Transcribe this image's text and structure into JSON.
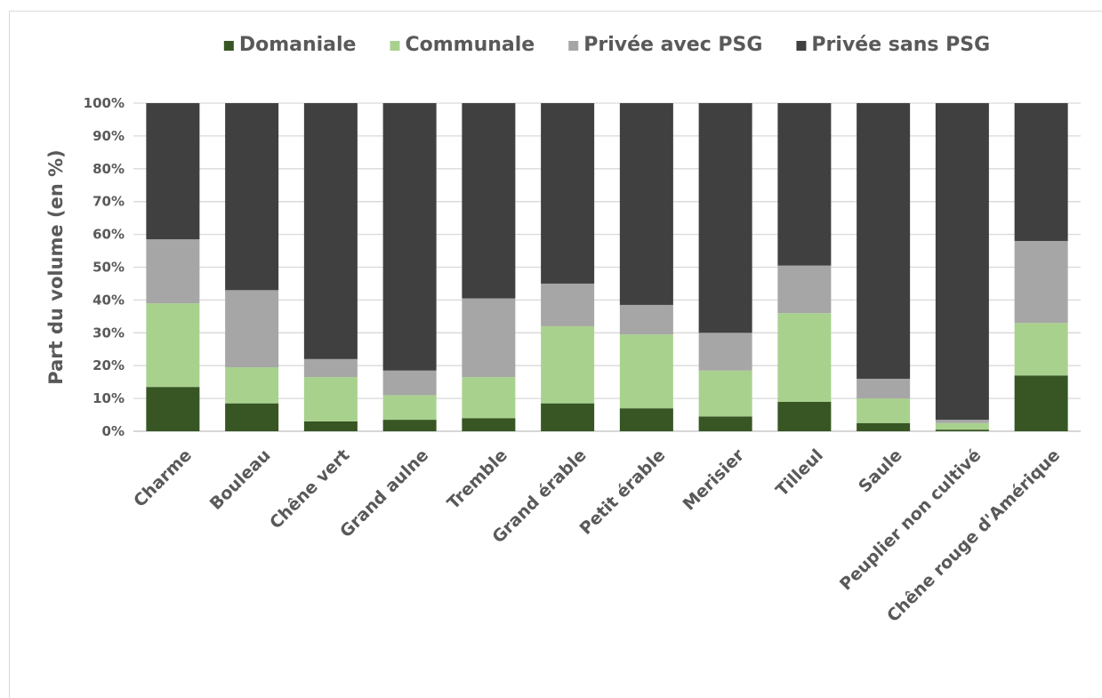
{
  "chart_data": {
    "type": "bar",
    "stacked": true,
    "percent": true,
    "categories": [
      "Charme",
      "Bouleau",
      "Chêne vert",
      "Grand aulne",
      "Tremble",
      "Grand érable",
      "Petit érable",
      "Merisier",
      "Tilleul",
      "Saule",
      "Peuplier non cultivé",
      "Chêne rouge d'Amérique"
    ],
    "series": [
      {
        "name": "Domaniale",
        "color": "#375623",
        "values": [
          13.5,
          8.5,
          3.0,
          3.5,
          4.0,
          8.5,
          7.0,
          4.5,
          9.0,
          2.5,
          0.5,
          17.0
        ]
      },
      {
        "name": "Communale",
        "color": "#a9d18e",
        "values": [
          25.5,
          11.0,
          13.5,
          7.5,
          12.5,
          23.5,
          22.5,
          14.0,
          27.0,
          7.5,
          2.0,
          16.0
        ]
      },
      {
        "name": "Privée avec PSG",
        "color": "#a6a6a6",
        "values": [
          19.5,
          23.5,
          5.5,
          7.5,
          24.0,
          13.0,
          9.0,
          11.5,
          14.5,
          6.0,
          1.0,
          25.0
        ]
      },
      {
        "name": "Privée sans PSG",
        "color": "#404040",
        "values": [
          41.5,
          57.0,
          78.0,
          81.5,
          59.5,
          55.0,
          61.5,
          70.0,
          49.5,
          84.0,
          96.5,
          42.0
        ]
      }
    ],
    "ylabel": "Part du volume (en %)",
    "xlabel": "",
    "ylim": [
      0,
      100
    ],
    "yticks": [
      "0%",
      "10%",
      "20%",
      "30%",
      "40%",
      "50%",
      "60%",
      "70%",
      "80%",
      "90%",
      "100%"
    ],
    "grid": true,
    "legend_position": "top"
  }
}
